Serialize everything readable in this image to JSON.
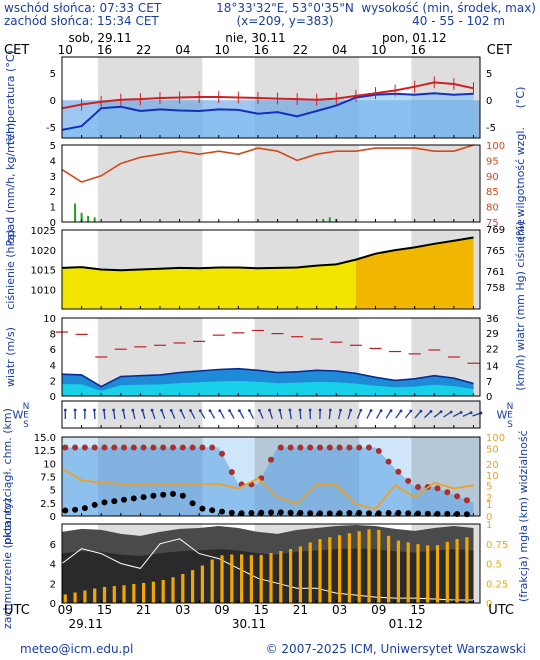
{
  "header": {
    "sunrise": "wschód słońca: 07:33 CET",
    "sunset": "zachód słońca: 15:34 CET",
    "coords": "18°33'32\"E, 53°0'35\"N",
    "grid": "(x=209, y=383)",
    "elevation_label": "wysokość (min, środek, max)",
    "elevation_values": "40 - 55 - 102 m"
  },
  "tz_top": "CET",
  "tz_bottom": "UTC",
  "days": [
    "sob, 29.11",
    "nie, 30.11",
    "pon, 01.12"
  ],
  "cet_ticks": [
    "10",
    "16",
    "22",
    "04",
    "10",
    "16",
    "22",
    "04",
    "10",
    "16"
  ],
  "utc_ticks": [
    "09",
    "15",
    "21",
    "03",
    "09",
    "15",
    "21",
    "03",
    "09",
    "15"
  ],
  "utc_dates": [
    "29.11",
    "30.11",
    "01.12"
  ],
  "footer": {
    "email": "meteo@icm.edu.pl",
    "copyright": "© 2007-2025 ICM, Uniwersytet Warszawski"
  },
  "colors": {
    "accent_blue": "#1a3fa0",
    "temp_red": "#d02020",
    "precip_green": "#20a020",
    "humidity": "#d04a1a",
    "wind_gust": "#c02020",
    "visibility": "#f0a020",
    "cloud_bars": "#f0a800"
  },
  "chart_data": [
    {
      "type": "line",
      "panel": "temperature",
      "ylabel_left": "temperatura (°C)",
      "ylabel_right": "(°C)",
      "ylim": [
        -7,
        8
      ],
      "ticks": [
        -5,
        0,
        5
      ],
      "x_hours": [
        0,
        3,
        6,
        9,
        12,
        15,
        18,
        21,
        24,
        27,
        30,
        33,
        36,
        39,
        42,
        45,
        48,
        51,
        54,
        57,
        60,
        63
      ],
      "series": [
        {
          "name": "temperature",
          "values": [
            -1.5,
            -0.8,
            -0.3,
            0.1,
            0.2,
            0.4,
            0.5,
            0.6,
            0.6,
            0.5,
            0.4,
            0.3,
            0.2,
            0.1,
            0.3,
            0.8,
            1.3,
            1.8,
            2.5,
            3.3,
            3.0,
            2.2
          ]
        },
        {
          "name": "dew_point",
          "values": [
            -5.5,
            -4.8,
            -1.5,
            -1.2,
            -2.0,
            -1.7,
            -1.9,
            -2.0,
            -1.7,
            -1.8,
            -2.5,
            -2.2,
            -3.0,
            -2.0,
            -1.0,
            0.5,
            1.0,
            1.2,
            1.0,
            1.3,
            1.0,
            1.2
          ]
        }
      ]
    },
    {
      "type": "bar",
      "panel": "precipitation_humidity",
      "ylabel_left": "opad (mm/h, kg/m²/h)",
      "ylabel_right": "(%) wilgotność wzgl.",
      "ylim_left": [
        0,
        5
      ],
      "ticks_left": [
        0,
        1,
        2,
        3,
        4,
        5
      ],
      "ylim_right": [
        75,
        100
      ],
      "ticks_right": [
        75,
        80,
        85,
        90,
        95,
        100
      ],
      "humidity_x_hours": [
        0,
        3,
        6,
        9,
        12,
        15,
        18,
        21,
        24,
        27,
        30,
        33,
        36,
        39,
        42,
        45,
        48,
        51,
        54,
        57,
        60,
        63
      ],
      "humidity": [
        92,
        88,
        90,
        94,
        96,
        97,
        98,
        97,
        98,
        97,
        99,
        98,
        95,
        97,
        98,
        98,
        99,
        99,
        99,
        98,
        98,
        100
      ],
      "precip_x_hours": [
        2,
        3,
        4,
        5,
        40,
        41,
        42
      ],
      "precip": [
        1.2,
        0.6,
        0.4,
        0.3,
        0.2,
        0.3,
        0.2
      ]
    },
    {
      "type": "area",
      "panel": "pressure",
      "ylabel_left": "ciśnienie (hPa)",
      "ylabel_right": "(mm Hg) ciśnienie",
      "ylim": [
        1005,
        1025
      ],
      "ticks_left": [
        1010,
        1015,
        1020,
        1025
      ],
      "ticks_right": [
        758,
        761,
        765,
        769
      ],
      "x_hours": [
        0,
        3,
        6,
        9,
        12,
        15,
        18,
        21,
        24,
        27,
        30,
        33,
        36,
        39,
        42,
        45,
        48,
        51,
        54,
        57,
        60,
        63
      ],
      "values": [
        1015.4,
        1015.6,
        1015.0,
        1014.8,
        1015.0,
        1015.2,
        1015.4,
        1015.3,
        1015.5,
        1015.5,
        1015.3,
        1015.4,
        1015.5,
        1016.0,
        1016.3,
        1017.5,
        1019.0,
        1019.9,
        1020.6,
        1021.5,
        1022.3,
        1023.1
      ]
    },
    {
      "type": "line",
      "panel": "wind",
      "ylabel_left": "wiatr (m/s)",
      "ylabel_right": "(km/h) wiatr",
      "ylim": [
        0,
        10
      ],
      "ticks_left": [
        0,
        2,
        4,
        6,
        8,
        10
      ],
      "ticks_right": [
        0,
        7,
        14,
        22,
        29,
        36
      ],
      "x_hours": [
        0,
        3,
        6,
        9,
        12,
        15,
        18,
        21,
        24,
        27,
        30,
        33,
        36,
        39,
        42,
        45,
        48,
        51,
        54,
        57,
        60,
        63
      ],
      "series": [
        {
          "name": "gust",
          "values": [
            8.2,
            7.9,
            5.0,
            6.0,
            6.3,
            6.5,
            6.8,
            7.0,
            7.8,
            8.1,
            8.4,
            8.0,
            7.6,
            7.3,
            6.9,
            6.5,
            6.1,
            5.7,
            5.4,
            5.9,
            5.0,
            4.2
          ]
        },
        {
          "name": "mean",
          "values": [
            2.8,
            2.7,
            1.2,
            2.5,
            2.6,
            2.7,
            3.0,
            3.2,
            3.4,
            3.5,
            3.3,
            3.0,
            3.1,
            3.3,
            3.2,
            2.9,
            2.4,
            2.0,
            2.2,
            2.6,
            2.3,
            1.6
          ]
        }
      ]
    },
    {
      "type": "scatter",
      "panel": "wind_direction",
      "labels": [
        "N",
        "W",
        "E",
        "S"
      ],
      "x_hours": [
        0,
        3,
        6,
        9,
        12,
        15,
        18,
        21,
        24,
        27,
        30,
        33,
        36,
        39,
        42,
        45,
        48,
        51,
        54,
        57,
        60,
        63
      ],
      "direction_deg": [
        180,
        180,
        175,
        170,
        165,
        160,
        155,
        150,
        150,
        150,
        155,
        165,
        175,
        180,
        190,
        200,
        210,
        215,
        220,
        230,
        240,
        250
      ]
    },
    {
      "type": "scatter",
      "panel": "cloud_base_visibility",
      "ylabel_left": "pion. rozciągł. chm. (km)",
      "ylabel_right": "(km) widzialność",
      "ylim_left": [
        0,
        15
      ],
      "ticks_left": [
        0,
        2.5,
        5,
        7.5,
        10,
        12.5,
        15
      ],
      "ticks_left_labels": [
        "0",
        "2.5",
        "5",
        "7.5",
        "10",
        "12.5",
        "15.0"
      ],
      "ylim_right": [
        0,
        100
      ],
      "ticks_right": [
        0,
        1,
        2,
        5,
        10,
        20,
        50,
        100
      ],
      "x_hours": [
        0,
        3,
        6,
        9,
        12,
        15,
        18,
        21,
        24,
        27,
        30,
        33,
        36,
        39,
        42,
        45,
        48,
        51,
        54,
        57,
        60,
        63
      ],
      "series": [
        {
          "name": "cloud_top",
          "values": [
            13.0,
            13.0,
            13.0,
            13.0,
            13.0,
            13.0,
            13.0,
            13.0,
            13.0,
            6.0,
            6.0,
            13.0,
            13.0,
            13.0,
            13.0,
            13.0,
            13.0,
            9.0,
            5.5,
            5.5,
            4.0,
            2.5
          ]
        },
        {
          "name": "cloud_base",
          "values": [
            1.0,
            1.3,
            2.5,
            3.0,
            3.5,
            4.0,
            4.3,
            1.5,
            0.9,
            0.5,
            0.6,
            0.7,
            0.6,
            0.5,
            0.5,
            0.6,
            0.5,
            0.6,
            0.5,
            0.4,
            0.4,
            0.3
          ]
        },
        {
          "name": "visibility",
          "values": [
            15,
            7,
            6,
            5.5,
            5.5,
            5.5,
            5.5,
            5.5,
            5.5,
            4,
            8,
            2,
            1,
            5.5,
            5,
            1,
            0.5,
            5,
            2,
            6,
            4,
            5
          ]
        }
      ]
    },
    {
      "type": "bar",
      "panel": "cloud_cover_fog",
      "ylabel_left": "zachmurzenie (oktanty)",
      "ylabel_right": "(frakcja) mgła",
      "ylim_left": [
        0,
        8
      ],
      "ticks_left": [
        0,
        2,
        4,
        6
      ],
      "ylim_right": [
        0,
        1
      ],
      "ticks_right": [
        0,
        0.25,
        0.5,
        0.75,
        1
      ],
      "x_hours": [
        0,
        3,
        6,
        9,
        12,
        15,
        18,
        21,
        24,
        27,
        30,
        33,
        36,
        39,
        42,
        45,
        48,
        51,
        54,
        57,
        60,
        63
      ],
      "fog_fraction": [
        0.1,
        0.15,
        0.2,
        0.22,
        0.25,
        0.28,
        0.35,
        0.45,
        0.6,
        0.62,
        0.6,
        0.65,
        0.7,
        0.8,
        0.85,
        0.9,
        0.95,
        0.8,
        0.75,
        0.72,
        0.8,
        0.85
      ],
      "series": [
        {
          "name": "total_cloud",
          "values": [
            7.2,
            7.5,
            7.4,
            7.0,
            6.8,
            7.2,
            7.5,
            7.6,
            7.8,
            7.6,
            7.2,
            7.0,
            7.4,
            7.6,
            7.8,
            7.9,
            7.8,
            7.5,
            7.3,
            7.6,
            7.8,
            7.6
          ]
        },
        {
          "name": "low_cloud",
          "values": [
            4.0,
            5.5,
            5.0,
            4.0,
            3.5,
            6.0,
            6.5,
            5.0,
            4.5,
            3.5,
            2.5,
            2.0,
            1.5,
            1.5,
            1.0,
            0.8,
            0.6,
            0.5,
            0.5,
            0.4,
            0.3,
            0.3
          ]
        }
      ]
    }
  ]
}
